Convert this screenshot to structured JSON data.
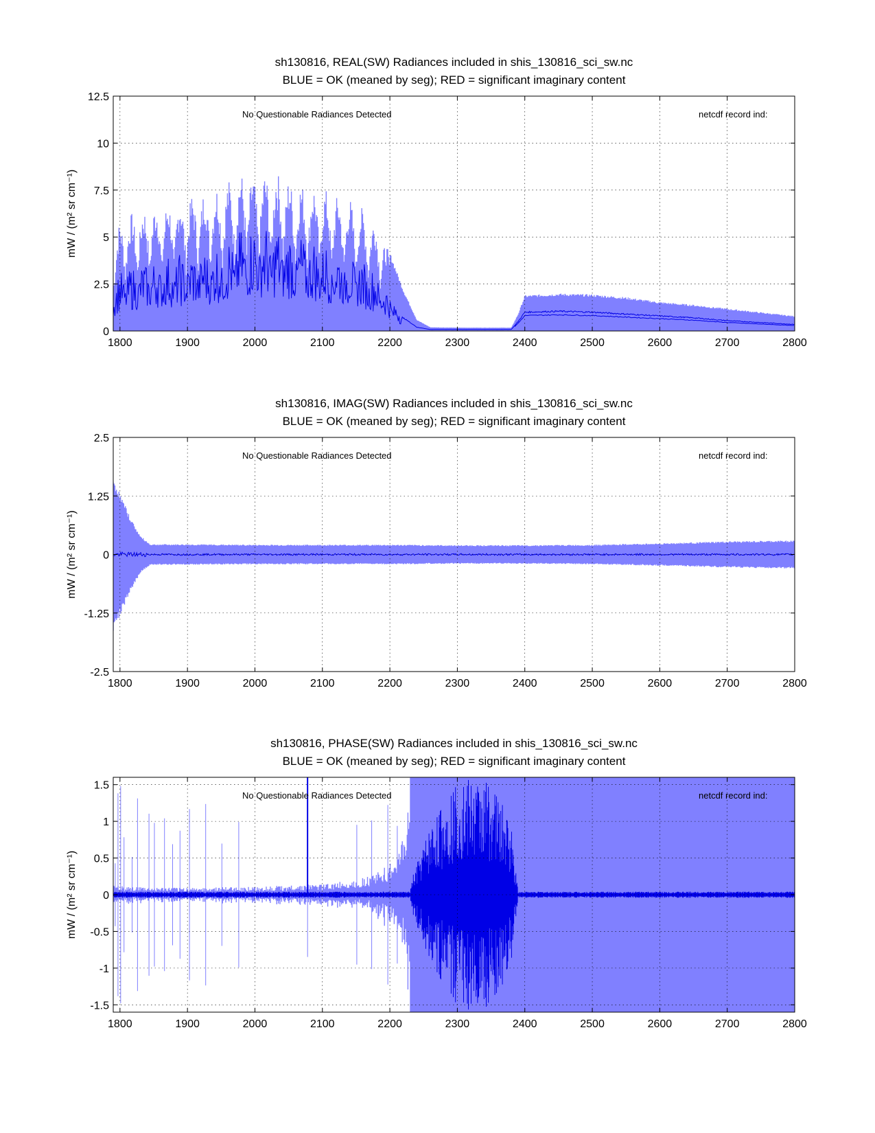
{
  "colors": {
    "envelope": "#8080ff",
    "mean": "#0000e6",
    "axis": "#000000",
    "background": "#ffffff"
  },
  "chart_data": [
    {
      "type": "area",
      "id": "real",
      "title_line1": "sh130816, REAL(SW) Radiances included in shis_130816_sci_sw.nc",
      "title_line2": "BLUE = OK (meaned by seg); RED = significant imaginary content",
      "annotation_left": "No Questionable Radiances Detected",
      "annotation_right": "netcdf record ind:",
      "ylabel": "mW / (m² sr cm⁻¹)",
      "xlabel": "",
      "xlim": [
        1790,
        2800
      ],
      "ylim": [
        0,
        12.5
      ],
      "x_ticks": [
        "1800",
        "1900",
        "2000",
        "2100",
        "2200",
        "2300",
        "2400",
        "2500",
        "2600",
        "2700",
        "2800"
      ],
      "y_ticks": [
        "0",
        "2.5",
        "5",
        "7.5",
        "10",
        "12.5"
      ],
      "grid": true,
      "series": [
        {
          "name": "envelope",
          "x": [
            1790,
            1800,
            1850,
            1900,
            1950,
            1980,
            2000,
            2030,
            2060,
            2100,
            2150,
            2180,
            2200,
            2220,
            2240,
            2260,
            2300,
            2380,
            2390,
            2400,
            2450,
            2500,
            2550,
            2600,
            2650,
            2700,
            2750,
            2800
          ],
          "values": [
            4.0,
            6.0,
            6.8,
            7.2,
            7.8,
            8.5,
            8.3,
            8.6,
            8.0,
            7.6,
            6.9,
            5.8,
            4.2,
            2.2,
            0.6,
            0.2,
            0.18,
            0.18,
            0.9,
            1.9,
            2.0,
            1.95,
            1.8,
            1.55,
            1.4,
            1.2,
            1.0,
            0.8
          ]
        },
        {
          "name": "mean",
          "x": [
            1790,
            1800,
            1850,
            1900,
            1950,
            1980,
            2000,
            2030,
            2060,
            2100,
            2150,
            2180,
            2200,
            2220,
            2240,
            2260,
            2300,
            2380,
            2390,
            2400,
            2450,
            2500,
            2550,
            2600,
            2650,
            2700,
            2750,
            2800
          ],
          "values": [
            1.8,
            2.5,
            3.0,
            3.2,
            3.6,
            4.2,
            4.5,
            4.3,
            4.0,
            3.7,
            3.2,
            2.5,
            1.6,
            0.7,
            0.2,
            0.08,
            0.08,
            0.08,
            0.5,
            1.0,
            1.05,
            1.0,
            0.9,
            0.8,
            0.7,
            0.55,
            0.45,
            0.35
          ]
        }
      ]
    },
    {
      "type": "area",
      "id": "imag",
      "title_line1": "sh130816, IMAG(SW) Radiances included in shis_130816_sci_sw.nc",
      "title_line2": "BLUE = OK (meaned by seg); RED = significant imaginary content",
      "annotation_left": "No Questionable Radiances Detected",
      "annotation_right": "netcdf record ind:",
      "ylabel": "mW / (m² sr cm⁻¹)",
      "xlabel": "",
      "xlim": [
        1790,
        2800
      ],
      "ylim": [
        -2.5,
        2.5
      ],
      "x_ticks": [
        "1800",
        "1900",
        "2000",
        "2100",
        "2200",
        "2300",
        "2400",
        "2500",
        "2600",
        "2700",
        "2800"
      ],
      "y_ticks": [
        "-2.5",
        "-1.25",
        "0",
        "1.25",
        "2.5"
      ],
      "grid": true,
      "series": [
        {
          "name": "envelope",
          "x": [
            1790,
            1800,
            1815,
            1830,
            1845,
            1900,
            2000,
            2100,
            2200,
            2300,
            2400,
            2500,
            2600,
            2700,
            2800
          ],
          "values": [
            1.65,
            1.3,
            0.8,
            0.4,
            0.22,
            0.22,
            0.21,
            0.21,
            0.21,
            0.2,
            0.2,
            0.21,
            0.24,
            0.28,
            0.3
          ]
        },
        {
          "name": "mean",
          "x": [
            1790,
            2800
          ],
          "values": [
            0.0,
            0.0
          ]
        }
      ]
    },
    {
      "type": "area",
      "id": "phase",
      "title_line1": "sh130816, PHASE(SW) Radiances included in shis_130816_sci_sw.nc",
      "title_line2": "BLUE = OK (meaned by seg); RED = significant imaginary content",
      "annotation_left": "No Questionable Radiances Detected",
      "annotation_right": "netcdf record ind:",
      "ylabel": "mW / (m² sr cm⁻¹)",
      "xlabel": "",
      "xlim": [
        1790,
        2800
      ],
      "ylim": [
        -1.6,
        1.6
      ],
      "x_ticks": [
        "1800",
        "1900",
        "2000",
        "2100",
        "2200",
        "2300",
        "2400",
        "2500",
        "2600",
        "2700",
        "2800"
      ],
      "y_ticks": [
        "-1.5",
        "-1",
        "-0.5",
        "0",
        "0.5",
        "1",
        "1.5"
      ],
      "grid": true,
      "series": [
        {
          "name": "envelope",
          "x": [
            1790,
            1800,
            1850,
            1900,
            2000,
            2100,
            2150,
            2180,
            2200,
            2215,
            2225,
            2230,
            2390,
            2400,
            2800
          ],
          "values": [
            0.15,
            0.1,
            0.08,
            0.08,
            0.09,
            0.12,
            0.17,
            0.25,
            0.35,
            0.5,
            0.9,
            1.6,
            1.6,
            1.6,
            1.6
          ]
        },
        {
          "name": "mean_core",
          "x": [
            1790,
            2230,
            2240,
            2260,
            2300,
            2350,
            2380,
            2390,
            2800
          ],
          "values": [
            0.03,
            0.03,
            0.4,
            0.9,
            1.5,
            1.5,
            0.9,
            0.03,
            0.03
          ]
        }
      ]
    }
  ]
}
